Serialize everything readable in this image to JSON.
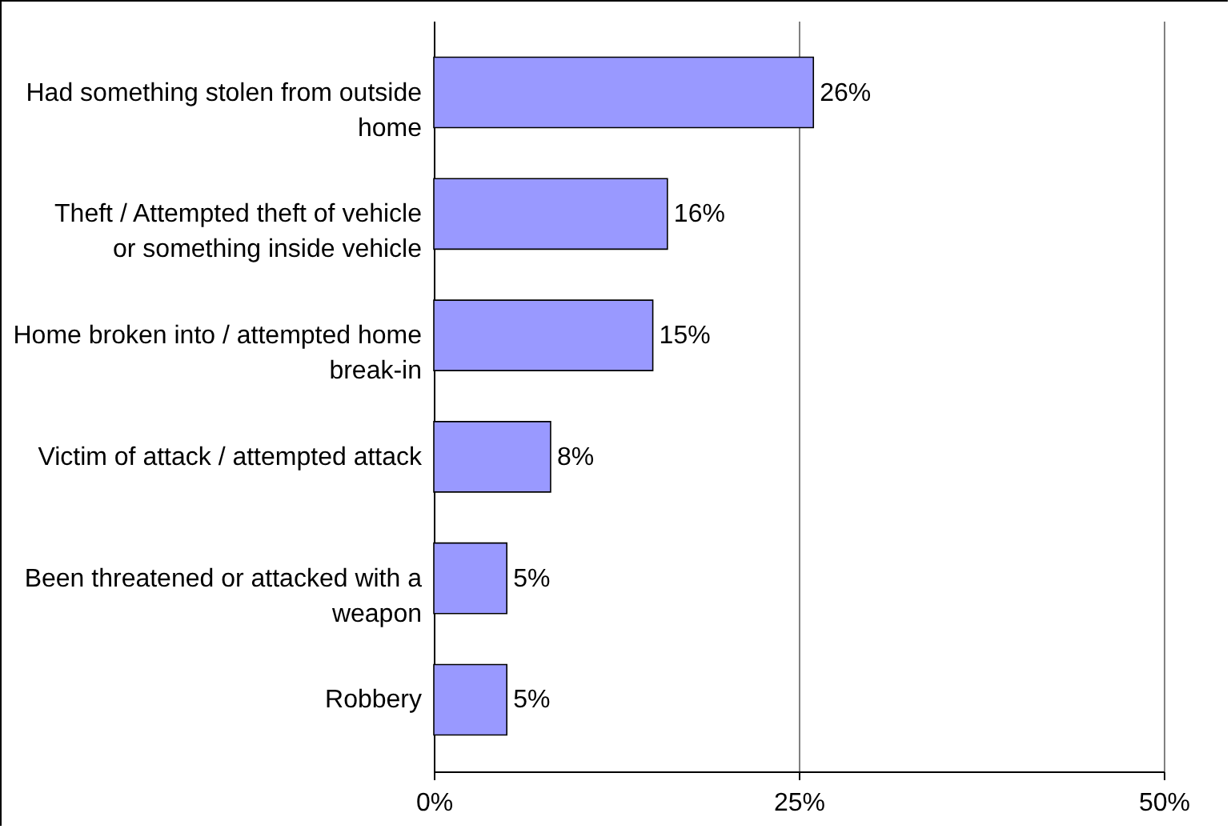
{
  "chart_data": {
    "type": "bar",
    "orientation": "horizontal",
    "categories": [
      "Had something stolen from outside home",
      "Theft / Attempted theft of vehicle or something inside vehicle",
      "Home broken into / attempted home break-in",
      "Victim of attack / attempted attack",
      "Been threatened or attacked with a weapon",
      "Robbery"
    ],
    "values": [
      26,
      16,
      15,
      8,
      5,
      5
    ],
    "value_labels": [
      "26%",
      "16%",
      "15%",
      "8%",
      "5%",
      "5%"
    ],
    "color": "#9999ff",
    "xlim": [
      0,
      50
    ],
    "xticks": [
      {
        "value": 0,
        "label": "0%"
      },
      {
        "value": 25,
        "label": "25%"
      },
      {
        "value": 50,
        "label": "50%"
      }
    ],
    "grid": "x"
  }
}
